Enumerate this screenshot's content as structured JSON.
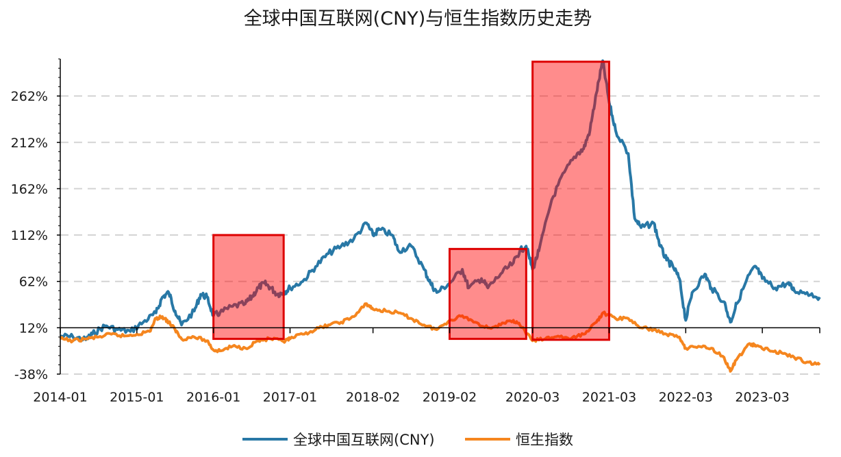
{
  "chart_data": {
    "type": "line",
    "title": "全球中国互联网(CNY)与恒生指数历史走势",
    "xlabel": "",
    "ylabel": "",
    "y_tick_labels": [
      "-38%",
      "12%",
      "62%",
      "112%",
      "162%",
      "212%",
      "262%"
    ],
    "y_tick_values": [
      -38,
      12,
      62,
      112,
      162,
      212,
      262
    ],
    "ylim": [
      -38,
      302
    ],
    "x_tick_labels": [
      "2014-01",
      "2015-01",
      "2016-01",
      "2017-01",
      "2018-02",
      "2019-02",
      "2020-03",
      "2021-03",
      "2022-03",
      "2023-03"
    ],
    "x_tick_dates": [
      "2014-01",
      "2015-01",
      "2016-01",
      "2017-01",
      "2018-02",
      "2019-02",
      "2020-03",
      "2021-03",
      "2022-03",
      "2023-03"
    ],
    "xlim": [
      "2014-01",
      "2023-12"
    ],
    "grid": "horizontal dashed",
    "legend_position": "bottom",
    "series": [
      {
        "name": "全球中国互联网(CNY)",
        "color": "#2878a6",
        "points": [
          [
            "2014-01",
            3
          ],
          [
            "2014-03",
            2
          ],
          [
            "2014-05",
            -1
          ],
          [
            "2014-06",
            5
          ],
          [
            "2014-08",
            14
          ],
          [
            "2014-10",
            10
          ],
          [
            "2014-12",
            8
          ],
          [
            "2015-02",
            18
          ],
          [
            "2015-04",
            28
          ],
          [
            "2015-05",
            45
          ],
          [
            "2015-06",
            50
          ],
          [
            "2015-07",
            30
          ],
          [
            "2015-08",
            15
          ],
          [
            "2015-10",
            30
          ],
          [
            "2015-11",
            48
          ],
          [
            "2015-12",
            45
          ],
          [
            "2016-01",
            25
          ],
          [
            "2016-02",
            28
          ],
          [
            "2016-04",
            35
          ],
          [
            "2016-06",
            38
          ],
          [
            "2016-07",
            45
          ],
          [
            "2016-08",
            55
          ],
          [
            "2016-09",
            60
          ],
          [
            "2016-10",
            55
          ],
          [
            "2016-11",
            48
          ],
          [
            "2016-12",
            50
          ],
          [
            "2017-01",
            55
          ],
          [
            "2017-03",
            62
          ],
          [
            "2017-05",
            78
          ],
          [
            "2017-07",
            92
          ],
          [
            "2017-09",
            100
          ],
          [
            "2017-11",
            108
          ],
          [
            "2018-01",
            125
          ],
          [
            "2018-02",
            112
          ],
          [
            "2018-03",
            118
          ],
          [
            "2018-05",
            112
          ],
          [
            "2018-06",
            95
          ],
          [
            "2018-08",
            100
          ],
          [
            "2018-10",
            75
          ],
          [
            "2018-11",
            60
          ],
          [
            "2018-12",
            50
          ],
          [
            "2019-02",
            60
          ],
          [
            "2019-04",
            75
          ],
          [
            "2019-05",
            55
          ],
          [
            "2019-07",
            65
          ],
          [
            "2019-08",
            55
          ],
          [
            "2019-10",
            70
          ],
          [
            "2019-12",
            82
          ],
          [
            "2020-01",
            95
          ],
          [
            "2020-02",
            100
          ],
          [
            "2020-03",
            75
          ],
          [
            "2020-04",
            95
          ],
          [
            "2020-06",
            150
          ],
          [
            "2020-08",
            180
          ],
          [
            "2020-10",
            200
          ],
          [
            "2020-11",
            205
          ],
          [
            "2020-12",
            225
          ],
          [
            "2021-01",
            265
          ],
          [
            "2021-02",
            300
          ],
          [
            "2021-03",
            255
          ],
          [
            "2021-04",
            225
          ],
          [
            "2021-06",
            200
          ],
          [
            "2021-07",
            130
          ],
          [
            "2021-08",
            120
          ],
          [
            "2021-10",
            125
          ],
          [
            "2021-11",
            100
          ],
          [
            "2021-12",
            85
          ],
          [
            "2022-01",
            78
          ],
          [
            "2022-02",
            65
          ],
          [
            "2022-03",
            20
          ],
          [
            "2022-04",
            50
          ],
          [
            "2022-06",
            70
          ],
          [
            "2022-07",
            55
          ],
          [
            "2022-09",
            40
          ],
          [
            "2022-10",
            18
          ],
          [
            "2022-11",
            38
          ],
          [
            "2023-01",
            70
          ],
          [
            "2023-02",
            78
          ],
          [
            "2023-03",
            65
          ],
          [
            "2023-05",
            55
          ],
          [
            "2023-07",
            60
          ],
          [
            "2023-08",
            52
          ],
          [
            "2023-10",
            50
          ],
          [
            "2023-12",
            45
          ]
        ]
      },
      {
        "name": "恒生指数",
        "color": "#f5861f",
        "points": [
          [
            "2014-01",
            0
          ],
          [
            "2014-03",
            -2
          ],
          [
            "2014-05",
            0
          ],
          [
            "2014-07",
            2
          ],
          [
            "2014-09",
            5
          ],
          [
            "2014-11",
            3
          ],
          [
            "2015-01",
            5
          ],
          [
            "2015-03",
            8
          ],
          [
            "2015-04",
            22
          ],
          [
            "2015-05",
            24
          ],
          [
            "2015-06",
            18
          ],
          [
            "2015-07",
            10
          ],
          [
            "2015-08",
            0
          ],
          [
            "2015-10",
            2
          ],
          [
            "2015-12",
            -2
          ],
          [
            "2016-01",
            -12
          ],
          [
            "2016-02",
            -13
          ],
          [
            "2016-04",
            -8
          ],
          [
            "2016-06",
            -10
          ],
          [
            "2016-08",
            -2
          ],
          [
            "2016-10",
            0
          ],
          [
            "2016-12",
            -3
          ],
          [
            "2017-01",
            0
          ],
          [
            "2017-03",
            5
          ],
          [
            "2017-05",
            10
          ],
          [
            "2017-07",
            15
          ],
          [
            "2017-09",
            18
          ],
          [
            "2017-11",
            24
          ],
          [
            "2018-01",
            38
          ],
          [
            "2018-02",
            32
          ],
          [
            "2018-04",
            30
          ],
          [
            "2018-06",
            28
          ],
          [
            "2018-08",
            22
          ],
          [
            "2018-10",
            15
          ],
          [
            "2018-12",
            10
          ],
          [
            "2019-02",
            20
          ],
          [
            "2019-04",
            25
          ],
          [
            "2019-06",
            18
          ],
          [
            "2019-08",
            12
          ],
          [
            "2019-10",
            15
          ],
          [
            "2019-12",
            20
          ],
          [
            "2020-01",
            15
          ],
          [
            "2020-03",
            -2
          ],
          [
            "2020-05",
            0
          ],
          [
            "2020-07",
            3
          ],
          [
            "2020-09",
            0
          ],
          [
            "2020-11",
            5
          ],
          [
            "2021-01",
            18
          ],
          [
            "2021-02",
            28
          ],
          [
            "2021-04",
            22
          ],
          [
            "2021-06",
            22
          ],
          [
            "2021-08",
            12
          ],
          [
            "2021-10",
            10
          ],
          [
            "2021-12",
            5
          ],
          [
            "2022-02",
            2
          ],
          [
            "2022-03",
            -10
          ],
          [
            "2022-05",
            -8
          ],
          [
            "2022-07",
            -10
          ],
          [
            "2022-09",
            -20
          ],
          [
            "2022-10",
            -35
          ],
          [
            "2022-11",
            -22
          ],
          [
            "2023-01",
            -5
          ],
          [
            "2023-02",
            -8
          ],
          [
            "2023-04",
            -12
          ],
          [
            "2023-06",
            -15
          ],
          [
            "2023-08",
            -20
          ],
          [
            "2023-10",
            -25
          ],
          [
            "2023-12",
            -28
          ]
        ]
      }
    ],
    "highlight_periods": [
      {
        "from": "2016-01",
        "to": "2016-12",
        "ymin": 0,
        "ymax": 112
      },
      {
        "from": "2019-02",
        "to": "2020-02",
        "ymin": 0,
        "ymax": 97
      },
      {
        "from": "2020-03",
        "to": "2021-03",
        "ymin": -1,
        "ymax": 299
      }
    ],
    "highlight_style": {
      "fill": "#ff0000",
      "fill_opacity": 0.45,
      "stroke": "#dd0000"
    }
  }
}
